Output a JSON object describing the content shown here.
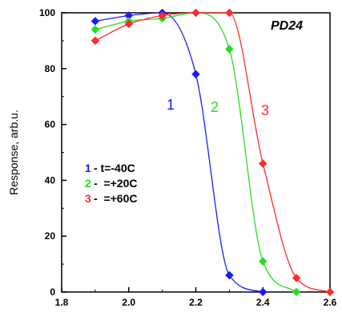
{
  "chart_data": {
    "type": "line",
    "title": "PD24",
    "xlabel": "",
    "ylabel": "Response, arb.u.",
    "xlim": [
      1.8,
      2.6
    ],
    "ylim": [
      0,
      100
    ],
    "xticks": [
      "1.8",
      "2.0",
      "2.2",
      "2.4",
      "2.6"
    ],
    "yticks": [
      "0",
      "20",
      "40",
      "60",
      "80",
      "100"
    ],
    "grid": false,
    "legend_position": "left",
    "series": [
      {
        "label": "1",
        "legend_num": "1",
        "legend_text": "- t=-40C",
        "color": "#1a1aff",
        "points": [
          [
            1.9,
            97
          ],
          [
            2.0,
            99
          ],
          [
            2.1,
            100
          ],
          [
            2.2,
            78
          ],
          [
            2.3,
            6
          ],
          [
            2.4,
            0
          ]
        ]
      },
      {
        "label": "2",
        "legend_num": "2",
        "legend_text": "-  =+20C",
        "color": "#22dd22",
        "points": [
          [
            1.9,
            94
          ],
          [
            2.0,
            97
          ],
          [
            2.1,
            98
          ],
          [
            2.2,
            100
          ],
          [
            2.3,
            87
          ],
          [
            2.4,
            11
          ],
          [
            2.5,
            0
          ]
        ]
      },
      {
        "label": "3",
        "legend_num": "3",
        "legend_text": "-  =+60C",
        "color": "#ff2a2a",
        "points": [
          [
            1.9,
            90
          ],
          [
            2.0,
            96
          ],
          [
            2.1,
            99
          ],
          [
            2.2,
            100
          ],
          [
            2.3,
            100
          ],
          [
            2.4,
            46
          ],
          [
            2.5,
            5
          ],
          [
            2.6,
            0
          ]
        ]
      }
    ]
  }
}
